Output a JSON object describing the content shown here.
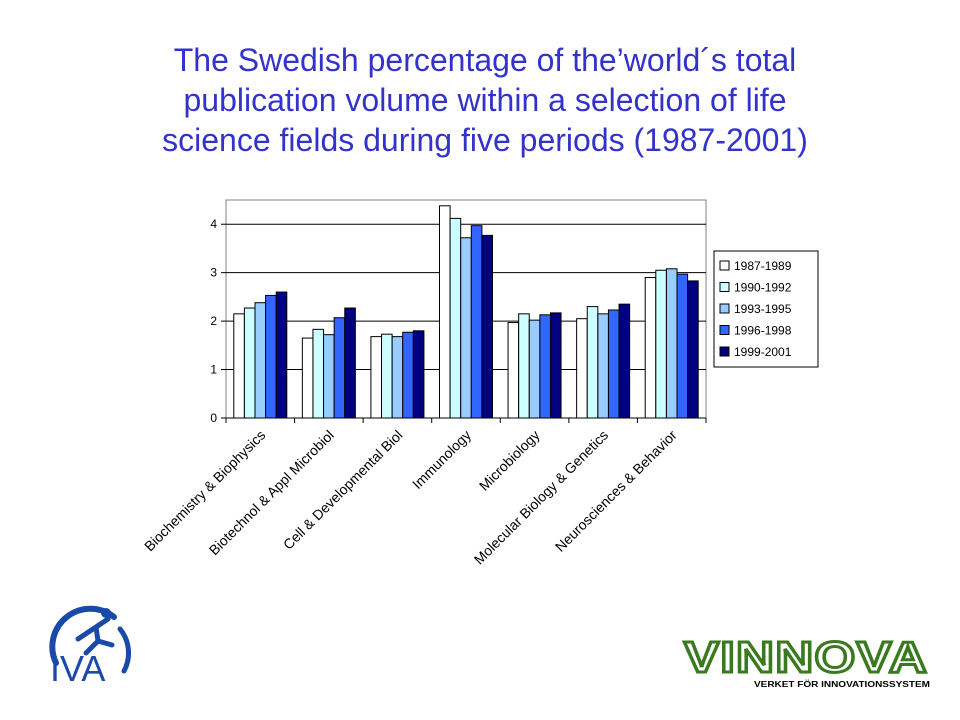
{
  "slide": {
    "title_lines": [
      "The Swedish percentage of the’world´s total",
      "publication volume within a selection of life",
      "science fields during five periods (1987-2001)"
    ]
  },
  "chart_data": {
    "type": "bar",
    "title": "The Swedish percentage of the’world´s total publication volume within a selection of life science fields during five periods (1987-2001)",
    "xlabel": "",
    "ylabel": "",
    "ylim": [
      0,
      4.5
    ],
    "yticks": [
      0,
      1,
      2,
      3,
      4
    ],
    "grid": true,
    "legend_position": "right",
    "categories": [
      "Biochemistry & Biophysics",
      "Biotechnol & Appl Microbiol",
      "Cell & Developmental Biol",
      "Immunology",
      "Microbiology",
      "Molecular Biology & Genetics",
      "Neurosciences & Behavior"
    ],
    "series": [
      {
        "name": "1987-1989",
        "color": "#ffffff",
        "values": [
          2.15,
          1.65,
          1.68,
          4.38,
          1.97,
          2.05,
          2.9
        ]
      },
      {
        "name": "1990-1992",
        "color": "#ccffff",
        "values": [
          2.27,
          1.83,
          1.73,
          4.12,
          2.15,
          2.3,
          3.05
        ]
      },
      {
        "name": "1993-1995",
        "color": "#99ccff",
        "values": [
          2.38,
          1.72,
          1.68,
          3.72,
          2.02,
          2.15,
          3.08
        ]
      },
      {
        "name": "1996-1998",
        "color": "#3366ff",
        "values": [
          2.53,
          2.07,
          1.77,
          3.97,
          2.13,
          2.23,
          2.97
        ]
      },
      {
        "name": "1999-2001",
        "color": "#000080",
        "values": [
          2.6,
          2.27,
          1.8,
          3.77,
          2.17,
          2.35,
          2.83
        ]
      }
    ]
  },
  "logos": {
    "iva": {
      "text": "IVA",
      "color": "#1a4aa8"
    },
    "vinnova": {
      "text": "VINNOVA",
      "tagline": "VERKET FÖR INNOVATIONSSYSTEM",
      "color": "#3a7a1e"
    }
  }
}
